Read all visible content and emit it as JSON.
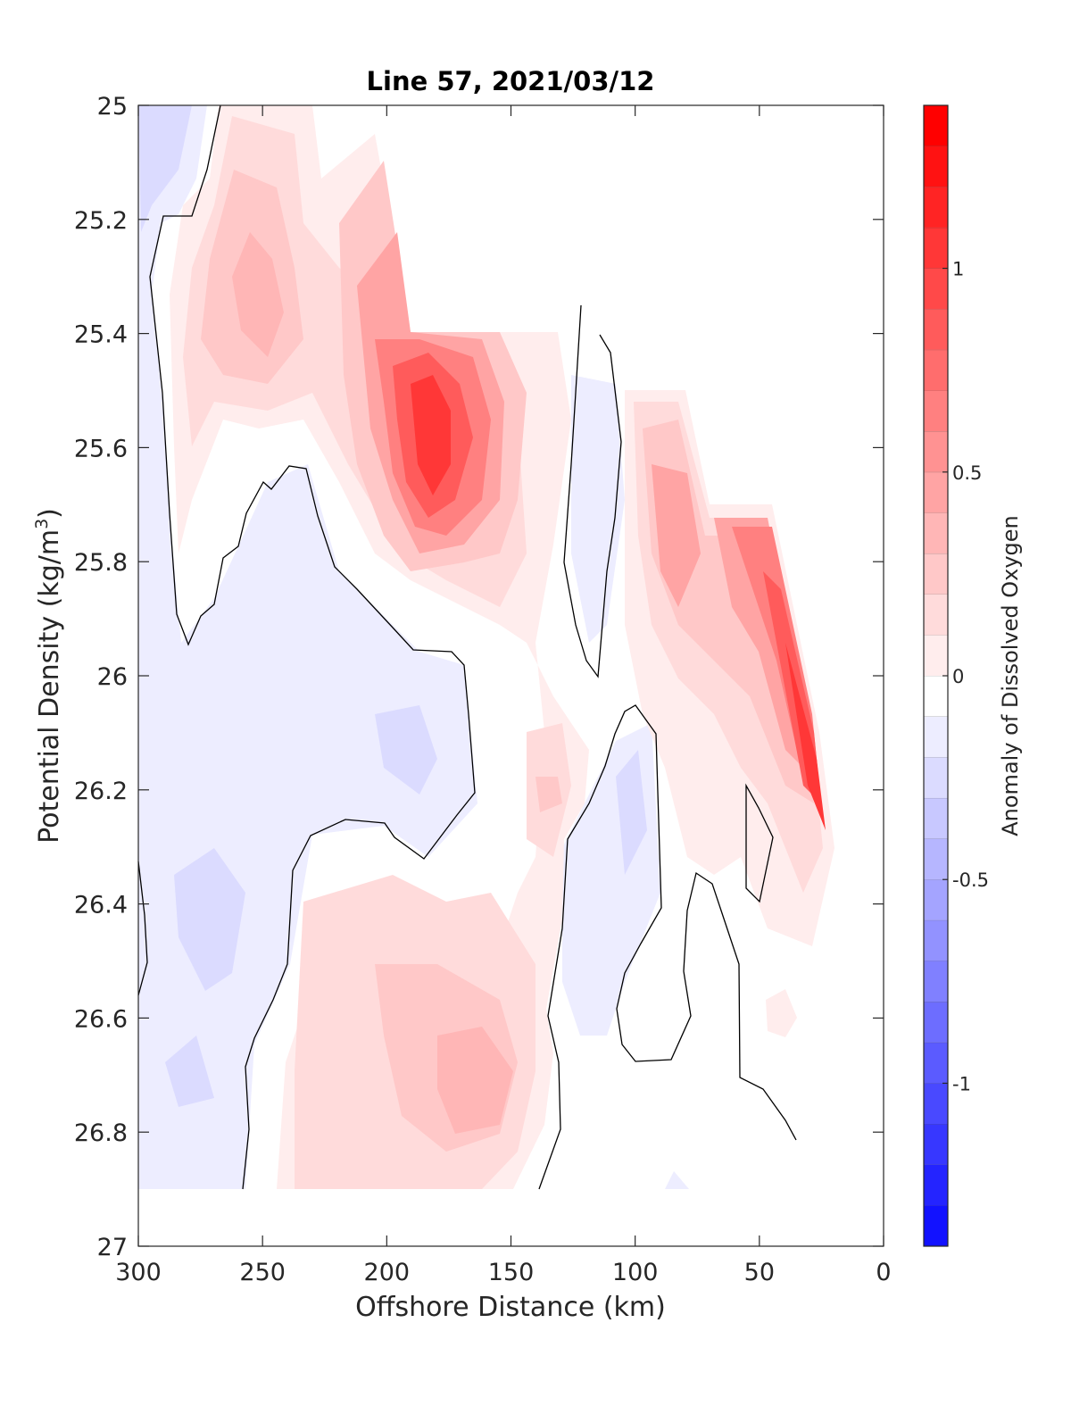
{
  "chart_data": {
    "type": "contourf",
    "title": "Line 57, 2021/03/12",
    "xlabel": "Offshore Distance (km)",
    "ylabel_main": "Potential Density (kg/m",
    "ylabel_sup": "3",
    "ylabel_tail": ")",
    "x_reversed": true,
    "y_reversed": true,
    "xlim": [
      0,
      300
    ],
    "ylim": [
      25,
      27
    ],
    "x_ticks": [
      300,
      250,
      200,
      150,
      100,
      50,
      0
    ],
    "x_tick_labels": [
      "300",
      "250",
      "200",
      "150",
      "100",
      "50",
      "0"
    ],
    "y_ticks": [
      25,
      25.2,
      25.4,
      25.6,
      25.8,
      26,
      26.2,
      26.4,
      26.6,
      26.8,
      27
    ],
    "y_tick_labels": [
      "25",
      "25.2",
      "25.4",
      "25.6",
      "25.8",
      "26",
      "26.2",
      "26.4",
      "26.6",
      "26.8",
      "27"
    ],
    "colorbar": {
      "label": "Anomaly of Dissolved Oxygen",
      "range": [
        -1.4,
        1.4
      ],
      "step": 0.1,
      "ticks": [
        1,
        0.5,
        0,
        -0.5,
        -1
      ],
      "tick_labels": [
        "1",
        "0.5",
        "0",
        "-0.5",
        "-1"
      ],
      "colormap": "blue-white-red",
      "neg_color": "#0000ff",
      "pos_color": "#ff0000"
    },
    "zero_contour_color": "#000000",
    "anomaly_features": [
      {
        "sign": "positive",
        "x": 180,
        "y": 25.58,
        "peak": 1.2
      },
      {
        "sign": "positive",
        "x": 250,
        "y": 25.32,
        "peak": 0.5
      },
      {
        "sign": "positive",
        "x": 88,
        "y": 25.75,
        "peak": 0.5
      },
      {
        "sign": "positive",
        "x": 22,
        "y": 26.12,
        "peak": 1.1
      },
      {
        "sign": "positive",
        "x": 160,
        "y": 26.7,
        "peak": 0.5
      },
      {
        "sign": "positive",
        "x": 140,
        "y": 26.2,
        "peak": 0.3
      },
      {
        "sign": "negative",
        "x": 220,
        "y": 26.0,
        "peak": -0.15
      },
      {
        "sign": "negative",
        "x": 270,
        "y": 26.4,
        "peak": -0.25
      },
      {
        "sign": "negative",
        "x": 105,
        "y": 26.25,
        "peak": -0.2
      }
    ]
  }
}
